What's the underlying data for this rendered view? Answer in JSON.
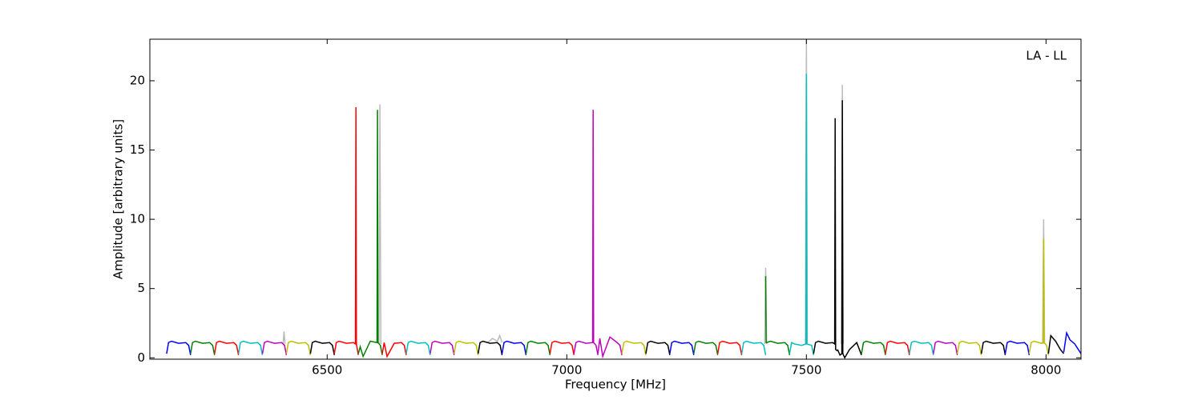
{
  "chart_data": {
    "type": "line",
    "xlabel": "Frequency [MHz]",
    "ylabel": "Amplitude [arbitrary units]",
    "annotation": "LA - LL",
    "xlim": [
      6130,
      8073
    ],
    "ylim": [
      -0.1,
      23
    ],
    "xticks": [
      6500,
      7000,
      7500,
      8000
    ],
    "yticks": [
      0,
      5,
      10,
      15,
      20
    ],
    "series": [
      {
        "color": "#bbbbbb",
        "x": [
          6408,
          6410,
          6412,
          6413,
          6608,
          6610,
          6612,
          6613,
          6835,
          6845,
          6855,
          6860,
          6865,
          6866,
          7413,
          7415,
          7417,
          7418,
          7498,
          7500,
          7502,
          7503,
          7573,
          7575,
          7577,
          7578,
          7993,
          7995,
          7997
        ],
        "values": [
          1.0,
          1.9,
          1.0,
          null,
          1.0,
          18.3,
          1.0,
          null,
          1.1,
          1.4,
          1.2,
          1.6,
          1.1,
          null,
          1.0,
          6.5,
          1.0,
          null,
          1.0,
          23,
          1.0,
          null,
          1.0,
          19.7,
          1.0,
          null,
          1.0,
          10,
          1.0
        ]
      },
      {
        "color": "#0000ff",
        "x": [
          6165,
          6169,
          6175,
          6190,
          6205,
          6211,
          6215
        ],
        "values": [
          0.3,
          1.1,
          1.2,
          1.05,
          1.1,
          0.9,
          0.2
        ]
      },
      {
        "color": "#008000",
        "x": [
          6215,
          6219,
          6225,
          6240,
          6255,
          6261,
          6265
        ],
        "values": [
          0.3,
          1.1,
          1.2,
          1.05,
          1.1,
          0.9,
          0.2
        ]
      },
      {
        "color": "#ff0000",
        "x": [
          6265,
          6269,
          6275,
          6290,
          6305,
          6311,
          6315
        ],
        "values": [
          0.3,
          1.1,
          1.2,
          1.05,
          1.1,
          0.9,
          0.2
        ]
      },
      {
        "color": "#00bfbf",
        "x": [
          6315,
          6319,
          6325,
          6340,
          6355,
          6361,
          6365
        ],
        "values": [
          0.3,
          1.1,
          1.2,
          1.05,
          1.1,
          0.9,
          0.2
        ]
      },
      {
        "color": "#bf00bf",
        "x": [
          6365,
          6369,
          6375,
          6390,
          6405,
          6411,
          6415
        ],
        "values": [
          0.3,
          1.1,
          1.2,
          1.05,
          1.1,
          0.9,
          0.2
        ]
      },
      {
        "color": "#bfbf00",
        "x": [
          6415,
          6419,
          6425,
          6440,
          6455,
          6461,
          6465
        ],
        "values": [
          0.3,
          1.1,
          1.2,
          1.05,
          1.1,
          0.9,
          0.2
        ]
      },
      {
        "color": "#000000",
        "x": [
          6465,
          6469,
          6475,
          6490,
          6505,
          6511,
          6515
        ],
        "values": [
          0.3,
          1.1,
          1.2,
          1.05,
          1.1,
          0.9,
          0.2
        ]
      },
      {
        "color": "#ff0000",
        "x": [
          6515,
          6519,
          6525,
          6540,
          6555,
          6559,
          6560,
          6561,
          6565
        ],
        "values": [
          0.3,
          1.1,
          1.2,
          1.05,
          1.1,
          1.0,
          18.1,
          1.0,
          0.2
        ]
      },
      {
        "color": "#008000",
        "x": [
          6565,
          6569,
          6575,
          6590,
          6604,
          6605,
          6606,
          6611,
          6615
        ],
        "values": [
          0.3,
          0.8,
          0.1,
          1.2,
          1.1,
          17.9,
          1.1,
          0.9,
          0.2
        ]
      },
      {
        "color": "#ff0000",
        "x": [
          6615,
          6619,
          6625,
          6640,
          6655,
          6661,
          6665
        ],
        "values": [
          0.3,
          1.1,
          0.1,
          1.05,
          1.1,
          0.9,
          0.2
        ]
      },
      {
        "color": "#00bfbf",
        "x": [
          6665,
          6669,
          6675,
          6690,
          6705,
          6711,
          6715
        ],
        "values": [
          0.3,
          1.1,
          1.2,
          1.05,
          1.1,
          0.9,
          0.2
        ]
      },
      {
        "color": "#bf00bf",
        "x": [
          6715,
          6719,
          6725,
          6740,
          6755,
          6761,
          6765
        ],
        "values": [
          0.3,
          1.1,
          1.2,
          1.05,
          1.1,
          0.9,
          0.2
        ]
      },
      {
        "color": "#bfbf00",
        "x": [
          6765,
          6769,
          6775,
          6790,
          6805,
          6811,
          6815
        ],
        "values": [
          0.3,
          1.1,
          1.2,
          1.05,
          1.1,
          0.9,
          0.2
        ]
      },
      {
        "color": "#000000",
        "x": [
          6815,
          6819,
          6825,
          6840,
          6855,
          6861,
          6865
        ],
        "values": [
          0.3,
          1.1,
          1.2,
          1.05,
          1.1,
          0.9,
          0.2
        ]
      },
      {
        "color": "#0000ff",
        "x": [
          6865,
          6869,
          6875,
          6890,
          6905,
          6911,
          6915
        ],
        "values": [
          0.3,
          1.1,
          1.2,
          1.05,
          1.1,
          0.9,
          0.2
        ]
      },
      {
        "color": "#008000",
        "x": [
          6915,
          6919,
          6925,
          6940,
          6955,
          6961,
          6965
        ],
        "values": [
          0.3,
          1.1,
          1.2,
          1.05,
          1.1,
          0.9,
          0.2
        ]
      },
      {
        "color": "#ff0000",
        "x": [
          6965,
          6969,
          6975,
          6990,
          7005,
          7011,
          7015
        ],
        "values": [
          0.3,
          1.1,
          1.2,
          1.05,
          1.1,
          0.9,
          0.2
        ]
      },
      {
        "color": "#bf00bf",
        "x": [
          7015,
          7019,
          7025,
          7040,
          7054,
          7055,
          7056,
          7061,
          7065
        ],
        "values": [
          0.3,
          1.1,
          1.2,
          1.05,
          1.1,
          17.9,
          1.1,
          0.9,
          0.2
        ]
      },
      {
        "color": "#bf00bf",
        "x": [
          7065,
          7069,
          7075,
          7090,
          7105,
          7111,
          7115
        ],
        "values": [
          0.3,
          1.4,
          0.1,
          1.5,
          1.1,
          0.9,
          0.2
        ]
      },
      {
        "color": "#bfbf00",
        "x": [
          7115,
          7119,
          7125,
          7140,
          7155,
          7161,
          7165
        ],
        "values": [
          0.3,
          1.1,
          1.2,
          1.05,
          1.1,
          0.9,
          0.2
        ]
      },
      {
        "color": "#000000",
        "x": [
          7165,
          7169,
          7175,
          7190,
          7205,
          7211,
          7215
        ],
        "values": [
          0.3,
          1.1,
          1.2,
          1.05,
          1.1,
          0.9,
          0.2
        ]
      },
      {
        "color": "#0000ff",
        "x": [
          7215,
          7219,
          7225,
          7240,
          7255,
          7261,
          7265
        ],
        "values": [
          0.3,
          1.1,
          1.2,
          1.05,
          1.1,
          0.9,
          0.2
        ]
      },
      {
        "color": "#008000",
        "x": [
          7265,
          7269,
          7275,
          7290,
          7305,
          7311,
          7315
        ],
        "values": [
          0.3,
          1.1,
          1.2,
          1.05,
          1.1,
          0.9,
          0.2
        ]
      },
      {
        "color": "#ff0000",
        "x": [
          7315,
          7319,
          7325,
          7340,
          7355,
          7361,
          7365
        ],
        "values": [
          0.3,
          1.1,
          1.2,
          1.05,
          1.1,
          0.9,
          0.2
        ]
      },
      {
        "color": "#00bfbf",
        "x": [
          7365,
          7369,
          7375,
          7390,
          7405,
          7411,
          7415
        ],
        "values": [
          0.3,
          1.1,
          1.2,
          1.05,
          1.1,
          0.9,
          0.2
        ]
      },
      {
        "color": "#008000",
        "x": [
          7415,
          7416,
          7417,
          7425,
          7440,
          7455,
          7461,
          7465
        ],
        "values": [
          5.9,
          1.1,
          1.1,
          1.2,
          1.05,
          1.1,
          0.9,
          0.2
        ]
      },
      {
        "color": "#00bfbf",
        "x": [
          7465,
          7469,
          7475,
          7490,
          7499,
          7500,
          7501,
          7511,
          7515
        ],
        "values": [
          0.3,
          1.1,
          1.0,
          0.9,
          1.0,
          20.5,
          1.0,
          0.9,
          0.2
        ]
      },
      {
        "color": "#000000",
        "x": [
          7515,
          7519,
          7525,
          7540,
          7555,
          7559,
          7560,
          7561,
          7565
        ],
        "values": [
          0.3,
          1.1,
          1.2,
          1.05,
          1.1,
          1.0,
          17.3,
          0.6,
          0.5
        ]
      },
      {
        "color": "#000000",
        "x": [
          7565,
          7570,
          7574,
          7575,
          7576,
          7580,
          7590,
          7605,
          7615
        ],
        "values": [
          0.6,
          0.2,
          0.3,
          18.6,
          0.3,
          0.0,
          0.6,
          1.1,
          0.2
        ]
      },
      {
        "color": "#008000",
        "x": [
          7615,
          7619,
          7625,
          7640,
          7655,
          7661,
          7665
        ],
        "values": [
          0.3,
          1.1,
          1.2,
          1.05,
          1.1,
          0.9,
          0.2
        ]
      },
      {
        "color": "#ff0000",
        "x": [
          7665,
          7669,
          7675,
          7690,
          7705,
          7711,
          7715
        ],
        "values": [
          0.3,
          1.1,
          1.2,
          1.05,
          1.1,
          0.9,
          0.2
        ]
      },
      {
        "color": "#00bfbf",
        "x": [
          7715,
          7719,
          7725,
          7740,
          7755,
          7761,
          7765
        ],
        "values": [
          0.3,
          1.1,
          1.2,
          1.05,
          1.1,
          0.9,
          0.2
        ]
      },
      {
        "color": "#bf00bf",
        "x": [
          7765,
          7769,
          7775,
          7790,
          7805,
          7811,
          7815
        ],
        "values": [
          0.3,
          1.1,
          1.2,
          1.05,
          1.1,
          0.9,
          0.2
        ]
      },
      {
        "color": "#bfbf00",
        "x": [
          7815,
          7819,
          7825,
          7840,
          7855,
          7861,
          7865
        ],
        "values": [
          0.3,
          1.1,
          1.2,
          1.05,
          1.1,
          0.9,
          0.2
        ]
      },
      {
        "color": "#000000",
        "x": [
          7865,
          7869,
          7875,
          7890,
          7905,
          7911,
          7915
        ],
        "values": [
          0.3,
          1.1,
          1.2,
          1.05,
          1.1,
          0.9,
          0.2
        ]
      },
      {
        "color": "#0000ff",
        "x": [
          7915,
          7919,
          7925,
          7940,
          7955,
          7961,
          7965
        ],
        "values": [
          0.3,
          1.1,
          1.2,
          1.05,
          1.1,
          0.9,
          0.2
        ]
      },
      {
        "color": "#bfbf00",
        "x": [
          7965,
          7969,
          7975,
          7990,
          7994,
          7995,
          7996,
          8001,
          8005
        ],
        "values": [
          0.3,
          1.1,
          1.2,
          1.05,
          1.1,
          8.6,
          1.1,
          0.9,
          0.2
        ]
      },
      {
        "color": "#000000",
        "x": [
          8005,
          8010,
          8020,
          8030,
          8037
        ],
        "values": [
          0.3,
          1.6,
          1.2,
          0.6,
          0.3
        ]
      },
      {
        "color": "#0000ff",
        "x": [
          8037,
          8043,
          8050,
          8060,
          8073
        ],
        "values": [
          0.4,
          1.8,
          1.3,
          1.0,
          0.3
        ]
      }
    ]
  }
}
